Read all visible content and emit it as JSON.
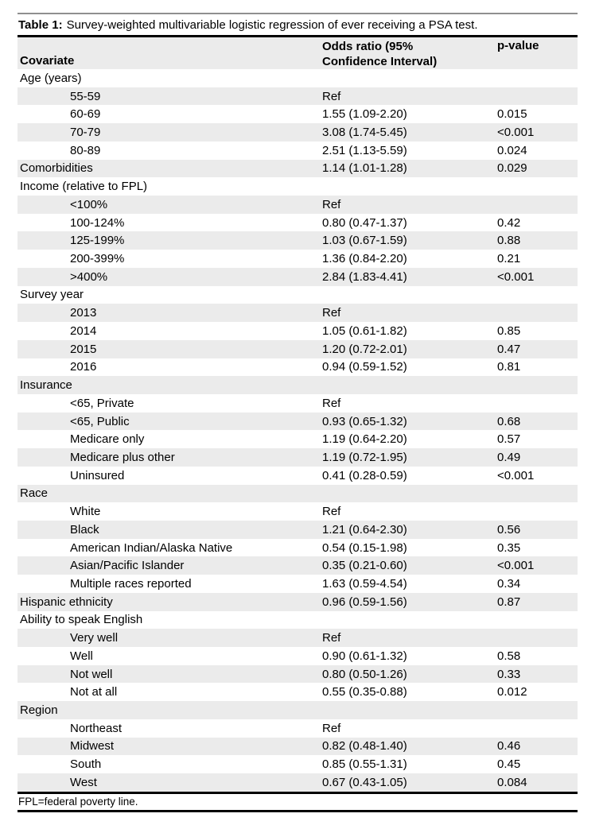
{
  "title": {
    "label": "Table 1:",
    "text": "Survey-weighted multivariable logistic regression of ever receiving a PSA test."
  },
  "table": {
    "stripe_color": "#ebebeb",
    "header": {
      "covariate": "Covariate",
      "or_line1": "Odds ratio (95%",
      "or_line2": "Confidence Interval)",
      "pvalue": "p-value"
    },
    "rows": [
      {
        "label": "Age (years)",
        "indent": false,
        "or": "",
        "p": ""
      },
      {
        "label": "55-59",
        "indent": true,
        "or": "Ref",
        "p": ""
      },
      {
        "label": "60-69",
        "indent": true,
        "or": "1.55 (1.09-2.20)",
        "p": "0.015"
      },
      {
        "label": "70-79",
        "indent": true,
        "or": "3.08 (1.74-5.45)",
        "p": "<0.001"
      },
      {
        "label": "80-89",
        "indent": true,
        "or": "2.51 (1.13-5.59)",
        "p": "0.024"
      },
      {
        "label": "Comorbidities",
        "indent": false,
        "or": "1.14 (1.01-1.28)",
        "p": "0.029"
      },
      {
        "label": "Income (relative to FPL)",
        "indent": false,
        "or": "",
        "p": ""
      },
      {
        "label": "<100%",
        "indent": true,
        "or": "Ref",
        "p": ""
      },
      {
        "label": "100-124%",
        "indent": true,
        "or": "0.80 (0.47-1.37)",
        "p": "0.42"
      },
      {
        "label": "125-199%",
        "indent": true,
        "or": "1.03 (0.67-1.59)",
        "p": "0.88"
      },
      {
        "label": "200-399%",
        "indent": true,
        "or": "1.36 (0.84-2.20)",
        "p": "0.21"
      },
      {
        "label": ">400%",
        "indent": true,
        "or": "2.84 (1.83-4.41)",
        "p": "<0.001"
      },
      {
        "label": "Survey year",
        "indent": false,
        "or": "",
        "p": ""
      },
      {
        "label": "2013",
        "indent": true,
        "or": "Ref",
        "p": ""
      },
      {
        "label": "2014",
        "indent": true,
        "or": "1.05 (0.61-1.82)",
        "p": "0.85"
      },
      {
        "label": "2015",
        "indent": true,
        "or": "1.20 (0.72-2.01)",
        "p": "0.47"
      },
      {
        "label": "2016",
        "indent": true,
        "or": "0.94 (0.59-1.52)",
        "p": "0.81"
      },
      {
        "label": "Insurance",
        "indent": false,
        "or": "",
        "p": ""
      },
      {
        "label": "<65, Private",
        "indent": true,
        "or": "Ref",
        "p": ""
      },
      {
        "label": "<65, Public",
        "indent": true,
        "or": "0.93 (0.65-1.32)",
        "p": "0.68"
      },
      {
        "label": "Medicare only",
        "indent": true,
        "or": "1.19 (0.64-2.20)",
        "p": "0.57"
      },
      {
        "label": "Medicare plus other",
        "indent": true,
        "or": "1.19 (0.72-1.95)",
        "p": "0.49"
      },
      {
        "label": "Uninsured",
        "indent": true,
        "or": "0.41 (0.28-0.59)",
        "p": "<0.001"
      },
      {
        "label": "Race",
        "indent": false,
        "or": "",
        "p": ""
      },
      {
        "label": "White",
        "indent": true,
        "or": "Ref",
        "p": ""
      },
      {
        "label": "Black",
        "indent": true,
        "or": "1.21 (0.64-2.30)",
        "p": "0.56"
      },
      {
        "label": "American Indian/Alaska Native",
        "indent": true,
        "or": "0.54 (0.15-1.98)",
        "p": "0.35"
      },
      {
        "label": "Asian/Pacific Islander",
        "indent": true,
        "or": "0.35 (0.21-0.60)",
        "p": "<0.001"
      },
      {
        "label": "Multiple races reported",
        "indent": true,
        "or": "1.63 (0.59-4.54)",
        "p": "0.34"
      },
      {
        "label": "Hispanic ethnicity",
        "indent": false,
        "or": "0.96 (0.59-1.56)",
        "p": "0.87"
      },
      {
        "label": "Ability to speak English",
        "indent": false,
        "or": "",
        "p": ""
      },
      {
        "label": "Very well",
        "indent": true,
        "or": "Ref",
        "p": ""
      },
      {
        "label": "Well",
        "indent": true,
        "or": "0.90 (0.61-1.32)",
        "p": "0.58"
      },
      {
        "label": "Not well",
        "indent": true,
        "or": "0.80 (0.50-1.26)",
        "p": "0.33"
      },
      {
        "label": "Not at all",
        "indent": true,
        "or": "0.55 (0.35-0.88)",
        "p": "0.012"
      },
      {
        "label": "Region",
        "indent": false,
        "or": "",
        "p": ""
      },
      {
        "label": "Northeast",
        "indent": true,
        "or": "Ref",
        "p": ""
      },
      {
        "label": "Midwest",
        "indent": true,
        "or": "0.82 (0.48-1.40)",
        "p": "0.46"
      },
      {
        "label": "South",
        "indent": true,
        "or": "0.85 (0.55-1.31)",
        "p": "0.45"
      },
      {
        "label": "West",
        "indent": true,
        "or": "0.67 (0.43-1.05)",
        "p": "0.084"
      }
    ]
  },
  "footnote": {
    "text": "FPL=federal poverty line."
  }
}
